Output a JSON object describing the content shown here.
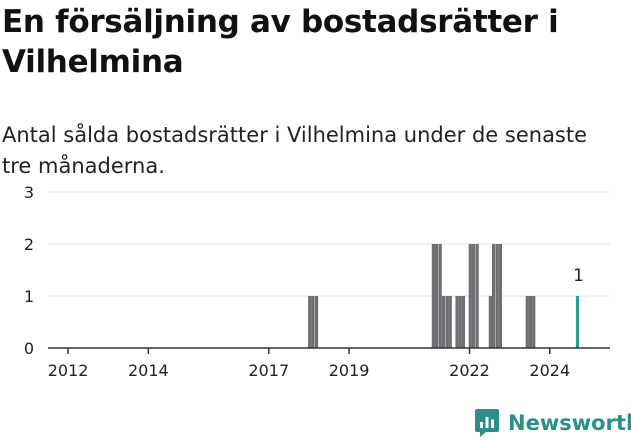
{
  "title": "En försäljning av bostadsrätter i Vilhelmina",
  "subtitle": "Antal sålda bostadsrätter i Vilhelmina under de senaste tre månaderna.",
  "brand": {
    "name": "Newsworthy",
    "color": "#2a8f85"
  },
  "chart_data": {
    "type": "bar",
    "title": "En försäljning av bostadsrätter i Vilhelmina",
    "subtitle": "Antal sålda bostadsrätter i Vilhelmina under de senaste tre månaderna.",
    "xlabel": "",
    "ylabel": "",
    "x_unit": "year",
    "xlim": [
      2011.5,
      2025.5
    ],
    "ylim": [
      0,
      3
    ],
    "y_ticks": [
      0,
      1,
      2,
      3
    ],
    "x_ticks": [
      2012,
      2014,
      2017,
      2019,
      2022,
      2024
    ],
    "grid": true,
    "bar_color": "#6e6e73",
    "highlight_color": "#2a9d8f",
    "series": [
      {
        "values": [
          {
            "x": 2018.02,
            "y": 1
          },
          {
            "x": 2018.1,
            "y": 1
          },
          {
            "x": 2018.19,
            "y": 1
          },
          {
            "x": 2021.1,
            "y": 2
          },
          {
            "x": 2021.18,
            "y": 2
          },
          {
            "x": 2021.27,
            "y": 2
          },
          {
            "x": 2021.35,
            "y": 1
          },
          {
            "x": 2021.44,
            "y": 1
          },
          {
            "x": 2021.52,
            "y": 1
          },
          {
            "x": 2021.69,
            "y": 1
          },
          {
            "x": 2021.77,
            "y": 1
          },
          {
            "x": 2021.85,
            "y": 1
          },
          {
            "x": 2022.02,
            "y": 2
          },
          {
            "x": 2022.1,
            "y": 2
          },
          {
            "x": 2022.19,
            "y": 2
          },
          {
            "x": 2022.52,
            "y": 1
          },
          {
            "x": 2022.6,
            "y": 2
          },
          {
            "x": 2022.69,
            "y": 2
          },
          {
            "x": 2022.77,
            "y": 2
          },
          {
            "x": 2023.44,
            "y": 1
          },
          {
            "x": 2023.52,
            "y": 1
          },
          {
            "x": 2023.6,
            "y": 1
          },
          {
            "x": 2024.69,
            "y": 1,
            "highlight": true,
            "label": "1"
          }
        ]
      }
    ]
  }
}
